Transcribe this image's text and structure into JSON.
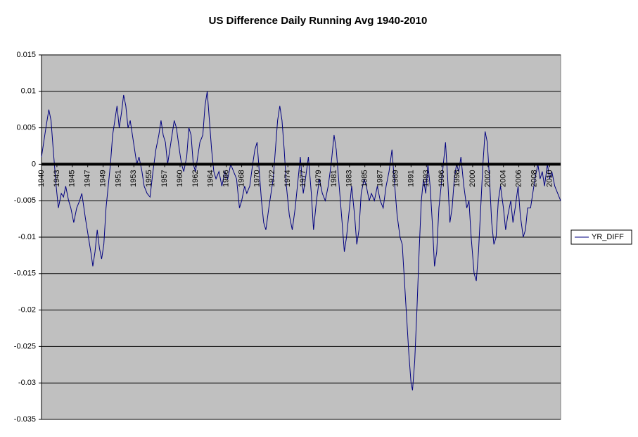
{
  "chart_data": {
    "type": "line",
    "title": "US Difference Daily Running Avg 1940-2010",
    "x": [
      1940.0,
      1940.3,
      1940.6,
      1941.0,
      1941.3,
      1941.6,
      1942.0,
      1942.3,
      1942.7,
      1943.0,
      1943.3,
      1943.7,
      1944.0,
      1944.4,
      1944.8,
      1945.2,
      1945.5,
      1946.0,
      1946.4,
      1946.8,
      1947.0,
      1947.3,
      1947.6,
      1947.9,
      1948.2,
      1948.5,
      1948.8,
      1949.1,
      1949.4,
      1949.7,
      1950.0,
      1950.3,
      1950.6,
      1950.9,
      1951.2,
      1951.5,
      1951.8,
      1952.1,
      1952.4,
      1952.7,
      1953.0,
      1953.3,
      1953.7,
      1954.0,
      1954.4,
      1954.8,
      1955.2,
      1955.6,
      1956.0,
      1956.3,
      1956.6,
      1956.9,
      1957.2,
      1957.5,
      1957.8,
      1958.1,
      1958.4,
      1958.8,
      1959.1,
      1959.4,
      1959.8,
      1960.1,
      1960.4,
      1960.7,
      1961.0,
      1961.3,
      1961.6,
      1962.0,
      1962.3,
      1962.6,
      1962.9,
      1963.2,
      1963.5,
      1963.8,
      1964.2,
      1964.6,
      1965.0,
      1965.4,
      1965.8,
      1966.2,
      1966.6,
      1967.0,
      1967.3,
      1967.7,
      1968.0,
      1968.4,
      1968.8,
      1969.1,
      1969.4,
      1969.7,
      1970.0,
      1970.3,
      1970.6,
      1971.0,
      1971.3,
      1971.6,
      1971.9,
      1972.2,
      1972.5,
      1972.8,
      1973.1,
      1973.4,
      1973.8,
      1974.2,
      1974.6,
      1975.0,
      1975.3,
      1975.7,
      1976.0,
      1976.4,
      1976.8,
      1977.1,
      1977.5,
      1977.9,
      1978.3,
      1978.7,
      1979.1,
      1979.5,
      1979.9,
      1980.2,
      1980.6,
      1981.0,
      1981.3,
      1981.6,
      1982.0,
      1982.3,
      1982.7,
      1983.0,
      1983.3,
      1983.6,
      1984.0,
      1984.3,
      1984.7,
      1985.0,
      1985.4,
      1985.8,
      1986.2,
      1986.6,
      1987.0,
      1987.4,
      1987.8,
      1988.1,
      1988.5,
      1988.9,
      1989.2,
      1989.5,
      1989.8,
      1990.1,
      1990.4,
      1990.6,
      1990.9,
      1991.2,
      1991.5,
      1991.8,
      1992.1,
      1992.4,
      1992.7,
      1993.0,
      1993.3,
      1993.6,
      1993.9,
      1994.2,
      1994.5,
      1994.8,
      1995.1,
      1995.4,
      1995.7,
      1996.0,
      1996.3,
      1996.6,
      1996.9,
      1997.2,
      1997.6,
      1998.0,
      1998.3,
      1998.6,
      1999.0,
      1999.3,
      1999.6,
      1999.9,
      2000.2,
      2000.5,
      2000.8,
      2001.1,
      2001.4,
      2001.7,
      2002.0,
      2002.3,
      2002.6,
      2003.0,
      2003.3,
      2003.6,
      2004.0,
      2004.3,
      2004.6,
      2005.0,
      2005.3,
      2005.7,
      2006.0,
      2006.3,
      2006.7,
      2007.0,
      2007.3,
      2007.7,
      2008.0,
      2008.3,
      2008.6,
      2009.0,
      2009.3,
      2009.6,
      2010.0,
      2010.4,
      2010.8
    ],
    "series": [
      {
        "name": "YR_DIFF",
        "color": "#000080",
        "values": [
          0.001,
          0.003,
          0.005,
          0.0075,
          0.006,
          0.002,
          -0.003,
          -0.006,
          -0.004,
          -0.0045,
          -0.003,
          -0.005,
          -0.006,
          -0.008,
          -0.006,
          -0.005,
          -0.004,
          -0.0075,
          -0.01,
          -0.0125,
          -0.014,
          -0.012,
          -0.009,
          -0.0115,
          -0.013,
          -0.011,
          -0.006,
          -0.003,
          0.0,
          0.004,
          0.006,
          0.008,
          0.005,
          0.007,
          0.0095,
          0.008,
          0.005,
          0.006,
          0.004,
          0.002,
          0.0,
          0.001,
          -0.001,
          -0.003,
          -0.004,
          -0.0045,
          -0.001,
          0.002,
          0.004,
          0.006,
          0.004,
          0.003,
          0.0,
          0.002,
          0.004,
          0.006,
          0.005,
          0.002,
          0.0,
          -0.001,
          0.001,
          0.005,
          0.004,
          0.0,
          -0.001,
          0.001,
          0.003,
          0.004,
          0.008,
          0.01,
          0.006,
          0.002,
          -0.001,
          -0.002,
          -0.001,
          -0.003,
          -0.001,
          -0.002,
          0.0,
          -0.001,
          -0.002,
          -0.006,
          -0.005,
          -0.003,
          -0.004,
          -0.003,
          0.0,
          0.002,
          0.003,
          -0.001,
          -0.005,
          -0.008,
          -0.009,
          -0.006,
          -0.004,
          -0.002,
          0.002,
          0.006,
          0.008,
          0.006,
          0.002,
          -0.003,
          -0.007,
          -0.009,
          -0.006,
          -0.002,
          0.001,
          -0.004,
          -0.002,
          0.001,
          -0.004,
          -0.009,
          -0.005,
          -0.002,
          -0.004,
          -0.005,
          -0.003,
          0.0,
          0.004,
          0.002,
          -0.003,
          -0.008,
          -0.012,
          -0.01,
          -0.006,
          -0.003,
          -0.007,
          -0.011,
          -0.009,
          -0.004,
          -0.002,
          -0.003,
          -0.005,
          -0.004,
          -0.005,
          -0.003,
          -0.005,
          -0.006,
          -0.003,
          -0.001,
          0.002,
          -0.002,
          -0.007,
          -0.01,
          -0.011,
          -0.016,
          -0.021,
          -0.026,
          -0.03,
          -0.031,
          -0.027,
          -0.02,
          -0.012,
          -0.005,
          -0.002,
          -0.004,
          0.0,
          -0.003,
          -0.008,
          -0.014,
          -0.012,
          -0.006,
          -0.003,
          0.0,
          0.003,
          -0.002,
          -0.008,
          -0.006,
          -0.002,
          0.0,
          -0.001,
          0.001,
          -0.003,
          -0.006,
          -0.005,
          -0.01,
          -0.015,
          -0.016,
          -0.012,
          -0.006,
          0.0,
          0.0045,
          0.003,
          -0.002,
          -0.008,
          -0.011,
          -0.01,
          -0.005,
          -0.003,
          -0.006,
          -0.009,
          -0.007,
          -0.005,
          -0.008,
          -0.006,
          -0.003,
          -0.007,
          -0.01,
          -0.009,
          -0.006,
          -0.006,
          -0.004,
          -0.002,
          0.0,
          -0.002,
          -0.001,
          -0.003,
          0.0,
          -0.002,
          -0.001,
          -0.003,
          -0.004,
          -0.005
        ]
      }
    ],
    "xlim": [
      1940,
      2010.8
    ],
    "xticks": [
      {
        "value": 1940,
        "label": "1940"
      },
      {
        "value": 1942.1,
        "label": "1943"
      },
      {
        "value": 1944.2,
        "label": "1945"
      },
      {
        "value": 1946.3,
        "label": "1947"
      },
      {
        "value": 1948.4,
        "label": "1949"
      },
      {
        "value": 1950.5,
        "label": "1951"
      },
      {
        "value": 1952.6,
        "label": "1953"
      },
      {
        "value": 1954.7,
        "label": "1955"
      },
      {
        "value": 1956.8,
        "label": "1957"
      },
      {
        "value": 1958.9,
        "label": "1960"
      },
      {
        "value": 1961,
        "label": "1962"
      },
      {
        "value": 1963.1,
        "label": "1964"
      },
      {
        "value": 1965.2,
        "label": "1966"
      },
      {
        "value": 1967.3,
        "label": "1968"
      },
      {
        "value": 1969.4,
        "label": "1970"
      },
      {
        "value": 1971.5,
        "label": "1972"
      },
      {
        "value": 1973.6,
        "label": "1974"
      },
      {
        "value": 1975.7,
        "label": "1977"
      },
      {
        "value": 1977.8,
        "label": "1979"
      },
      {
        "value": 1979.9,
        "label": "1981"
      },
      {
        "value": 1982,
        "label": "1983"
      },
      {
        "value": 1984.1,
        "label": "1985"
      },
      {
        "value": 1986.2,
        "label": "1987"
      },
      {
        "value": 1988.3,
        "label": "1989"
      },
      {
        "value": 1990.4,
        "label": "1991"
      },
      {
        "value": 1992.5,
        "label": "1993"
      },
      {
        "value": 1994.6,
        "label": "1996"
      },
      {
        "value": 1996.7,
        "label": "1998"
      },
      {
        "value": 1998.8,
        "label": "2000"
      },
      {
        "value": 2000.9,
        "label": "2002"
      },
      {
        "value": 2003,
        "label": "2004"
      },
      {
        "value": 2005.1,
        "label": "2006"
      },
      {
        "value": 2007.2,
        "label": "2008"
      },
      {
        "value": 2009.3,
        "label": "2010"
      }
    ],
    "ylim": [
      -0.035,
      0.015
    ],
    "yticks": [
      -0.035,
      -0.03,
      -0.025,
      -0.02,
      -0.015,
      -0.01,
      -0.005,
      0,
      0.005,
      0.01,
      0.015
    ],
    "grid": true,
    "legend": "right",
    "plot_background": "#c0c0c0"
  }
}
